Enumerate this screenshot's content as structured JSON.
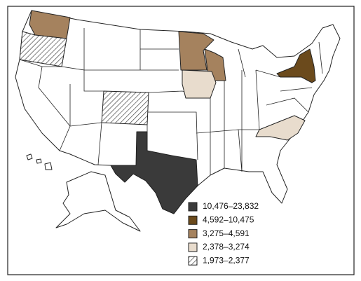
{
  "legend": {
    "items": [
      {
        "label": "10,476–23,832",
        "fill": "#3a3a3a"
      },
      {
        "label": "4,592–10,475",
        "fill": "#6b4a1c"
      },
      {
        "label": "3,275–4,591",
        "fill": "#a5825e"
      },
      {
        "label": "2,378–3,274",
        "fill": "#e8dccd"
      },
      {
        "label": "1,973–2,377",
        "fill": "hatch"
      }
    ]
  }
}
